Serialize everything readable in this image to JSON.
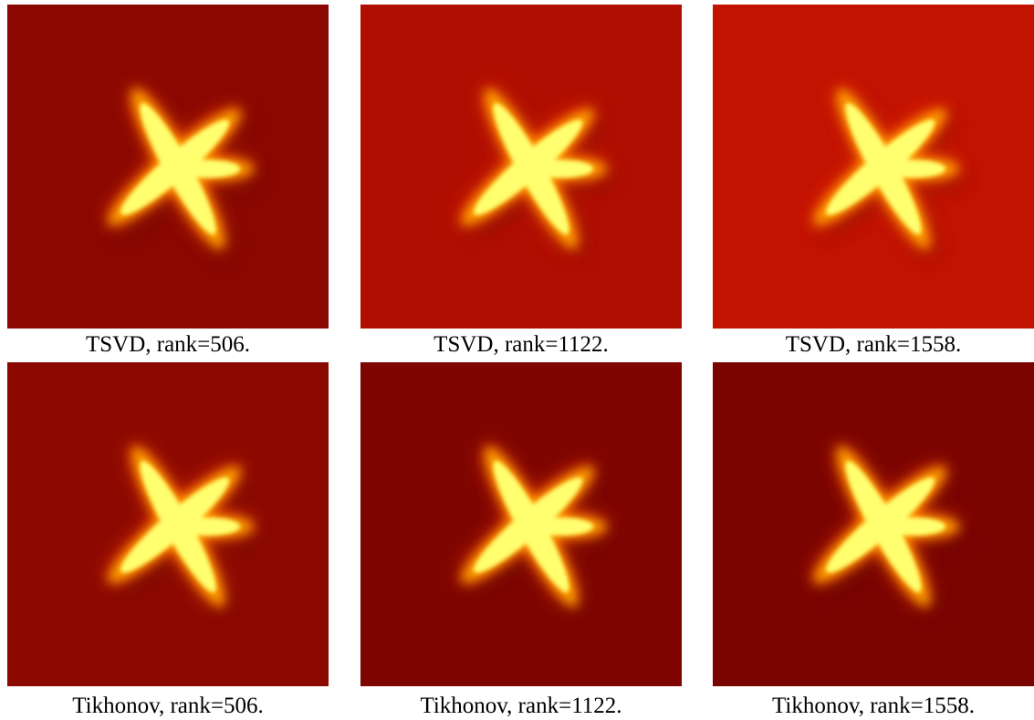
{
  "panels": [
    {
      "caption": "TSVD, rank=506."
    },
    {
      "caption": "TSVD, rank=1122."
    },
    {
      "caption": "TSVD, rank=1558."
    },
    {
      "caption": "Tikhonov, rank=506."
    },
    {
      "caption": "Tikhonov, rank=1122."
    },
    {
      "caption": "Tikhonov, rank=1558."
    }
  ]
}
